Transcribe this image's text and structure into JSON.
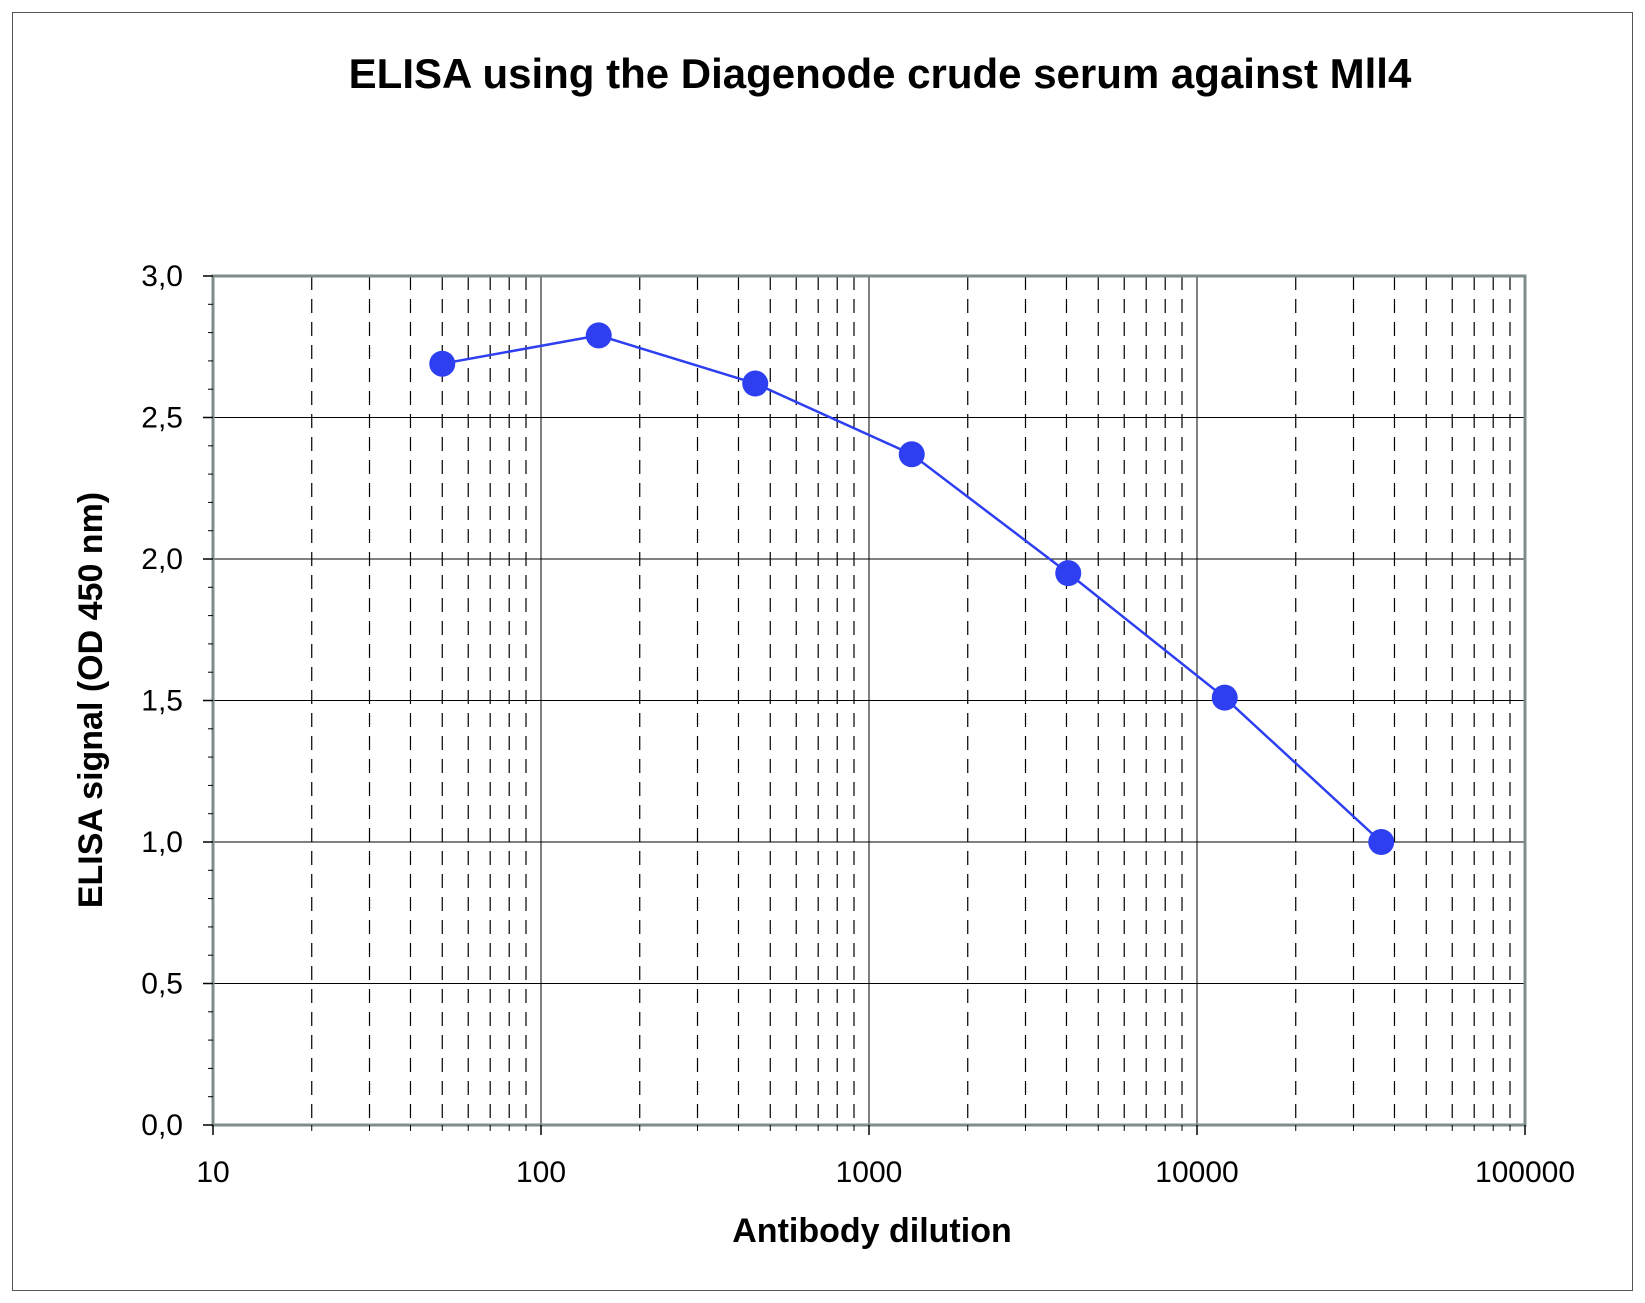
{
  "chart_data": {
    "type": "line",
    "title": "ELISA using the Diagenode crude serum against Mll4",
    "xlabel": "Antibody dilution",
    "ylabel": "ELISA signal (OD 450 nm)",
    "x_scale": "log",
    "xlim": [
      10,
      100000
    ],
    "ylim": [
      0,
      3
    ],
    "x_tick_labels": [
      "10",
      "100",
      "1000",
      "10000",
      "100000"
    ],
    "y_tick_labels": [
      "0,0",
      "0,5",
      "1,0",
      "1,5",
      "2,0",
      "2,5",
      "3,0"
    ],
    "grid": true,
    "legend": "none",
    "series": [
      {
        "color": "#2d3ff0",
        "x": [
          50,
          150,
          450,
          1350,
          4050,
          12150,
          36450
        ],
        "y": [
          2.69,
          2.79,
          2.62,
          2.37,
          1.95,
          1.51,
          1.0
        ]
      }
    ]
  }
}
